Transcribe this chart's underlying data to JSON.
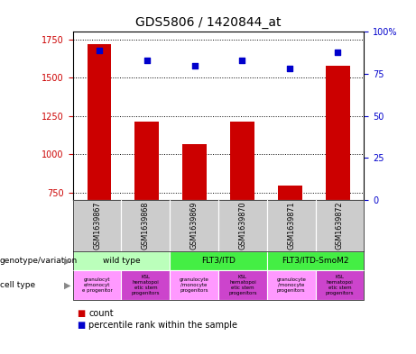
{
  "title": "GDS5806 / 1420844_at",
  "samples": [
    "GSM1639867",
    "GSM1639868",
    "GSM1639869",
    "GSM1639870",
    "GSM1639871",
    "GSM1639872"
  ],
  "counts": [
    1720,
    1210,
    1065,
    1210,
    795,
    1580
  ],
  "percentile_ranks": [
    89,
    83,
    80,
    83,
    78,
    88
  ],
  "ylim_left": [
    700,
    1800
  ],
  "ylim_right": [
    0,
    100
  ],
  "yticks_left": [
    750,
    1000,
    1250,
    1500,
    1750
  ],
  "yticks_right": [
    0,
    25,
    50,
    75,
    100
  ],
  "bar_color": "#cc0000",
  "dot_color": "#0000cc",
  "geno_groups": [
    {
      "label": "wild type",
      "start": 0,
      "end": 2,
      "color": "#bbffbb"
    },
    {
      "label": "FLT3/ITD",
      "start": 2,
      "end": 4,
      "color": "#44ee44"
    },
    {
      "label": "FLT3/ITD-SmoM2",
      "start": 4,
      "end": 6,
      "color": "#44ee44"
    }
  ],
  "cell_colors": [
    "#ff99ff",
    "#cc44cc",
    "#ff99ff",
    "#cc44cc",
    "#ff99ff",
    "#cc44cc"
  ],
  "cell_labels": [
    "granulocyt\ne/monocyt\ne progenitor",
    "KSL\nhematopoi\netic stem\nprogenitors",
    "granulocyte\n/monocyte\nprogenitors",
    "KSL\nhematopoi\netic stem\nprogenitors",
    "granulocyte\n/monocyte\nprogenitors",
    "KSL\nhematopoi\netic stem\nprogenitors"
  ],
  "left_color": "#cc0000",
  "right_color": "#0000cc",
  "gsm_bg": "#cccccc",
  "title_fontsize": 10,
  "tick_fontsize": 7,
  "bar_width": 0.5,
  "xlim": [
    -0.55,
    5.55
  ]
}
